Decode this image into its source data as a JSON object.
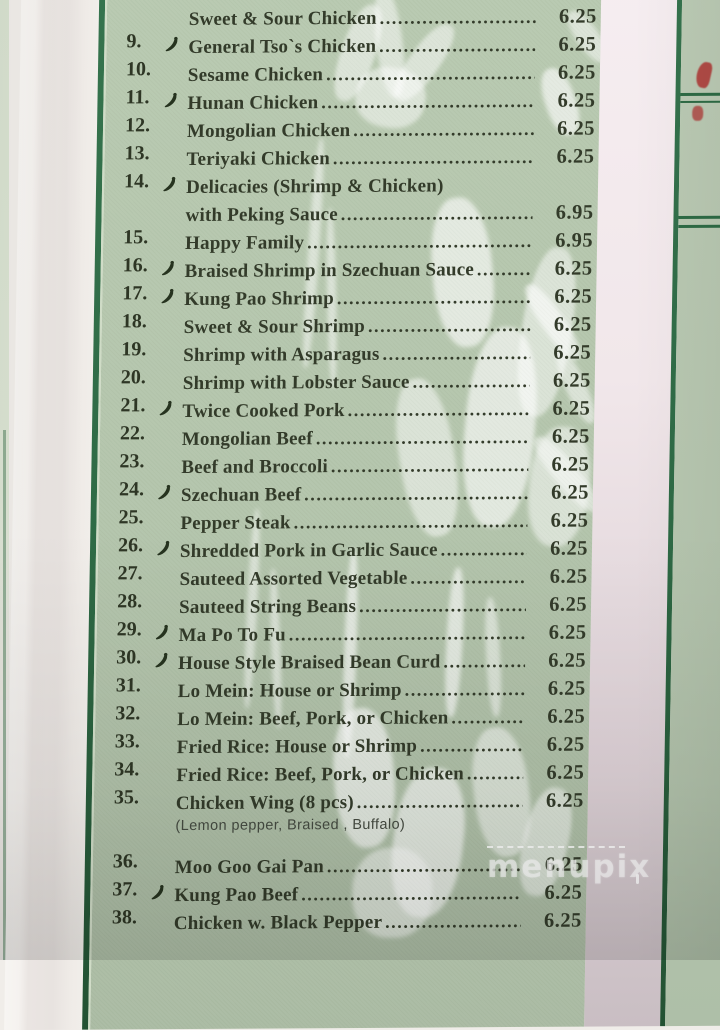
{
  "photo": {
    "description": "photograph of printed restaurant menu page",
    "site_watermark": {
      "text": "menupix"
    },
    "top_partial_row": {
      "leader_only": true
    }
  },
  "colors": {
    "panel_green": "#b4c5ac",
    "border_green": "#2e6a45",
    "text_green_black": "#333b2a",
    "gutter_pink_white": "#f1e7ea",
    "red_fragment": "#b04a45",
    "spicy_icon_color": "#26331f"
  },
  "icons": {
    "spicy": "chili-pepper-icon"
  },
  "menu": {
    "rows": [
      {
        "type": "item",
        "number": "",
        "name": "Sweet & Sour Chicken",
        "price": "6.25",
        "spicy": false
      },
      {
        "type": "item",
        "number": "9.",
        "name": "General Tso`s Chicken",
        "price": "6.25",
        "spicy": true
      },
      {
        "type": "item",
        "number": "10.",
        "name": "Sesame Chicken",
        "price": "6.25",
        "spicy": false
      },
      {
        "type": "item",
        "number": "11.",
        "name": "Hunan Chicken",
        "price": "6.25",
        "spicy": true
      },
      {
        "type": "item",
        "number": "12.",
        "name": "Mongolian Chicken",
        "price": "6.25",
        "spicy": false
      },
      {
        "type": "item",
        "number": "13.",
        "name": "Teriyaki Chicken",
        "price": "6.25",
        "spicy": false
      },
      {
        "type": "item",
        "number": "14.",
        "name": "Delicacies (Shrimp & Chicken)",
        "price": "",
        "spicy": true
      },
      {
        "type": "continuation",
        "number": "",
        "name": "with Peking Sauce",
        "price": "6.95",
        "spicy": false
      },
      {
        "type": "item",
        "number": "15.",
        "name": "Happy Family",
        "price": "6.95",
        "spicy": false
      },
      {
        "type": "item",
        "number": "16.",
        "name": "Braised Shrimp in Szechuan Sauce",
        "price": "6.25",
        "spicy": true
      },
      {
        "type": "item",
        "number": "17.",
        "name": "Kung Pao Shrimp",
        "price": "6.25",
        "spicy": true
      },
      {
        "type": "item",
        "number": "18.",
        "name": "Sweet & Sour Shrimp",
        "price": "6.25",
        "spicy": false
      },
      {
        "type": "item",
        "number": "19.",
        "name": "Shrimp with Asparagus",
        "price": "6.25",
        "spicy": false
      },
      {
        "type": "item",
        "number": "20.",
        "name": "Shrimp with Lobster Sauce",
        "price": "6.25",
        "spicy": false
      },
      {
        "type": "item",
        "number": "21.",
        "name": "Twice Cooked Pork",
        "price": "6.25",
        "spicy": true
      },
      {
        "type": "item",
        "number": "22.",
        "name": "Mongolian Beef",
        "price": "6.25",
        "spicy": false
      },
      {
        "type": "item",
        "number": "23.",
        "name": "Beef and Broccoli",
        "price": "6.25",
        "spicy": false
      },
      {
        "type": "item",
        "number": "24.",
        "name": "Szechuan Beef",
        "price": "6.25",
        "spicy": true
      },
      {
        "type": "item",
        "number": "25.",
        "name": "Pepper Steak",
        "price": "6.25",
        "spicy": false
      },
      {
        "type": "item",
        "number": "26.",
        "name": "Shredded Pork in Garlic Sauce",
        "price": "6.25",
        "spicy": true
      },
      {
        "type": "item",
        "number": "27.",
        "name": "Sauteed Assorted Vegetable",
        "price": "6.25",
        "spicy": false
      },
      {
        "type": "item",
        "number": "28.",
        "name": "Sauteed String Beans",
        "price": "6.25",
        "spicy": false
      },
      {
        "type": "item",
        "number": "29.",
        "name": "Ma Po To Fu",
        "price": "6.25",
        "spicy": true
      },
      {
        "type": "item",
        "number": "30.",
        "name": "House Style Braised Bean Curd",
        "price": "6.25",
        "spicy": true
      },
      {
        "type": "item",
        "number": "31.",
        "name": "Lo Mein: House or Shrimp",
        "price": "6.25",
        "spicy": false
      },
      {
        "type": "item",
        "number": "32.",
        "name": "Lo Mein: Beef, Pork, or Chicken",
        "price": "6.25",
        "spicy": false
      },
      {
        "type": "item",
        "number": "33.",
        "name": "Fried Rice: House or Shrimp",
        "price": "6.25",
        "spicy": false
      },
      {
        "type": "item",
        "number": "34.",
        "name": "Fried Rice: Beef, Pork, or Chicken",
        "price": "6.25",
        "spicy": false
      },
      {
        "type": "item",
        "number": "35.",
        "name": "Chicken Wing (8 pcs)",
        "price": "6.25",
        "spicy": false
      },
      {
        "type": "note",
        "number": "",
        "name": "(Lemon pepper, Braised , Buffalo)",
        "price": "",
        "spicy": false
      },
      {
        "type": "item",
        "number": "36.",
        "name": "Moo Goo Gai Pan",
        "price": "6.25",
        "spicy": false
      },
      {
        "type": "item",
        "number": "37.",
        "name": "Kung Pao Beef",
        "price": "6.25",
        "spicy": true
      },
      {
        "type": "item",
        "number": "38.",
        "name": "Chicken w. Black Pepper",
        "price": "6.25",
        "spicy": false
      }
    ]
  }
}
